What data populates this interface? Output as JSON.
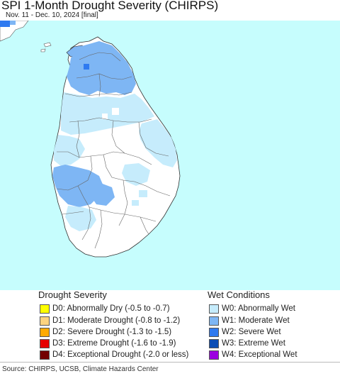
{
  "header": {
    "title": "SPI 1-Month Drought Severity (CHIRPS)",
    "subtitle": "Nov. 11 - Dec. 10, 2024 [final]"
  },
  "legend": {
    "drought_title": "Drought Severity",
    "wet_title": "Wet Conditions",
    "drought_items": [
      {
        "code": "D0",
        "label": "D0: Abnormally Dry (-0.5 to -0.7)",
        "color": "#ffff00"
      },
      {
        "code": "D1",
        "label": "D1: Moderate Drought (-0.8 to -1.2)",
        "color": "#fcd37f"
      },
      {
        "code": "D2",
        "label": "D2: Severe Drought (-1.3 to -1.5)",
        "color": "#ffaa00"
      },
      {
        "code": "D3",
        "label": "D3: Extreme Drought (-1.6 to -1.9)",
        "color": "#e60000"
      },
      {
        "code": "D4",
        "label": "D4: Exceptional Drought (-2.0 or less)",
        "color": "#730000"
      }
    ],
    "wet_items": [
      {
        "code": "W0",
        "label": "W0: Abnormally Wet",
        "color": "#c6ecfc"
      },
      {
        "code": "W1",
        "label": "W1: Moderate Wet",
        "color": "#7eb6f4"
      },
      {
        "code": "W2",
        "label": "W2: Severe Wet",
        "color": "#2f7af0"
      },
      {
        "code": "W3",
        "label": "W3: Extreme Wet",
        "color": "#0b4db5"
      },
      {
        "code": "W4",
        "label": "W4: Exceptional Wet",
        "color": "#9b00e0"
      }
    ]
  },
  "map": {
    "ocean_color": "#c6fdfd",
    "land_color": "#ffffff",
    "border_color": "#555555"
  },
  "footer": {
    "source": "Source: CHIRPS, UCSB, Climate Hazards Center"
  }
}
